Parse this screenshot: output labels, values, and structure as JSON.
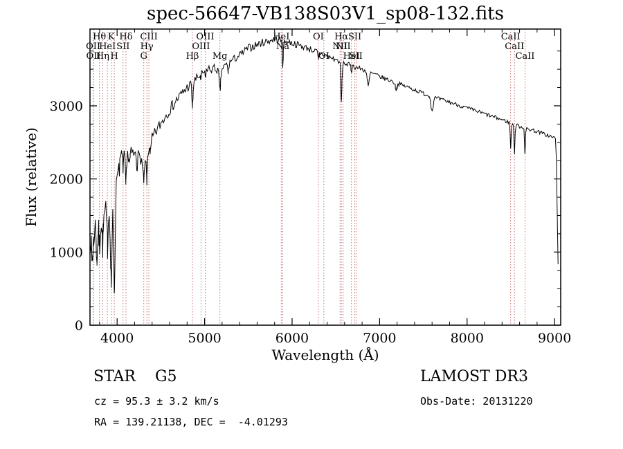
{
  "title": "spec-56647-VB138S03V1_sp08-132.fits",
  "footer": {
    "star_class": "STAR    G5",
    "survey": "LAMOST DR3",
    "cz": "cz = 95.3 ± 3.2 km/s",
    "obs_date": "Obs-Date: 20131220",
    "radec": "RA = 139.21138, DEC =  -4.01293"
  },
  "chart_data": {
    "type": "line",
    "title": "spec-56647-VB138S03V1_sp08-132.fits",
    "xlabel": "Wavelength (Å)",
    "ylabel": "Flux (relative)",
    "xlim": [
      3690,
      9070
    ],
    "ylim": [
      0,
      4050
    ],
    "x_ticks": [
      4000,
      5000,
      6000,
      7000,
      8000,
      9000
    ],
    "y_ticks": [
      0,
      1000,
      2000,
      3000
    ],
    "x_minor_step": 200,
    "y_minor_step": 250,
    "grid": false,
    "legend": "none",
    "line_color": "#000000",
    "marker_color": "#b84c4c",
    "sample_step": 10,
    "data_end": 9040,
    "noise_seed": 7,
    "continuum": [
      [
        3690,
        1300
      ],
      [
        3710,
        1250
      ],
      [
        3730,
        1320
      ],
      [
        3750,
        1340
      ],
      [
        3770,
        1300
      ],
      [
        3790,
        1380
      ],
      [
        3810,
        1420
      ],
      [
        3830,
        1450
      ],
      [
        3850,
        1480
      ],
      [
        3870,
        1500
      ],
      [
        3890,
        1520
      ],
      [
        3910,
        1530
      ],
      [
        3930,
        1520
      ],
      [
        3950,
        1500
      ],
      [
        3970,
        1520
      ],
      [
        3985,
        1700
      ],
      [
        4000,
        2100
      ],
      [
        4020,
        2250
      ],
      [
        4050,
        2320
      ],
      [
        4100,
        2320
      ],
      [
        4150,
        2350
      ],
      [
        4200,
        2330
      ],
      [
        4250,
        2300
      ],
      [
        4300,
        2270
      ],
      [
        4350,
        2380
      ],
      [
        4400,
        2550
      ],
      [
        4450,
        2660
      ],
      [
        4500,
        2760
      ],
      [
        4550,
        2860
      ],
      [
        4600,
        2950
      ],
      [
        4650,
        3030
      ],
      [
        4700,
        3110
      ],
      [
        4750,
        3180
      ],
      [
        4800,
        3250
      ],
      [
        4850,
        3300
      ],
      [
        4900,
        3360
      ],
      [
        4950,
        3420
      ],
      [
        5000,
        3470
      ],
      [
        5050,
        3500
      ],
      [
        5100,
        3510
      ],
      [
        5150,
        3500
      ],
      [
        5200,
        3510
      ],
      [
        5250,
        3560
      ],
      [
        5300,
        3610
      ],
      [
        5350,
        3650
      ],
      [
        5400,
        3690
      ],
      [
        5450,
        3740
      ],
      [
        5500,
        3790
      ],
      [
        5550,
        3810
      ],
      [
        5600,
        3840
      ],
      [
        5650,
        3860
      ],
      [
        5700,
        3880
      ],
      [
        5750,
        3895
      ],
      [
        5800,
        3910
      ],
      [
        5850,
        3905
      ],
      [
        5900,
        3890
      ],
      [
        5950,
        3875
      ],
      [
        6000,
        3860
      ],
      [
        6050,
        3840
      ],
      [
        6100,
        3820
      ],
      [
        6150,
        3800
      ],
      [
        6200,
        3780
      ],
      [
        6250,
        3755
      ],
      [
        6300,
        3730
      ],
      [
        6350,
        3705
      ],
      [
        6400,
        3680
      ],
      [
        6450,
        3655
      ],
      [
        6500,
        3630
      ],
      [
        6550,
        3605
      ],
      [
        6600,
        3580
      ],
      [
        6650,
        3560
      ],
      [
        6700,
        3540
      ],
      [
        6750,
        3520
      ],
      [
        6800,
        3500
      ],
      [
        6850,
        3475
      ],
      [
        6900,
        3450
      ],
      [
        6950,
        3425
      ],
      [
        7000,
        3400
      ],
      [
        7100,
        3355
      ],
      [
        7200,
        3310
      ],
      [
        7300,
        3265
      ],
      [
        7400,
        3220
      ],
      [
        7500,
        3170
      ],
      [
        7600,
        3120
      ],
      [
        7700,
        3085
      ],
      [
        7800,
        3050
      ],
      [
        7900,
        3010
      ],
      [
        8000,
        2970
      ],
      [
        8100,
        2930
      ],
      [
        8200,
        2890
      ],
      [
        8300,
        2850
      ],
      [
        8400,
        2810
      ],
      [
        8500,
        2765
      ],
      [
        8600,
        2720
      ],
      [
        8700,
        2685
      ],
      [
        8800,
        2650
      ],
      [
        8900,
        2605
      ],
      [
        9000,
        2560
      ],
      [
        9010,
        2540
      ],
      [
        9020,
        2300
      ],
      [
        9030,
        1600
      ],
      [
        9040,
        800
      ]
    ],
    "noise_profile": [
      [
        3690,
        200
      ],
      [
        3900,
        215
      ],
      [
        3990,
        180
      ],
      [
        4010,
        110
      ],
      [
        4200,
        95
      ],
      [
        4400,
        85
      ],
      [
        4700,
        78
      ],
      [
        5000,
        68
      ],
      [
        5300,
        55
      ],
      [
        5600,
        55
      ],
      [
        6000,
        48
      ],
      [
        6400,
        40
      ],
      [
        6800,
        34
      ],
      [
        7200,
        30
      ],
      [
        7600,
        30
      ],
      [
        8000,
        27
      ],
      [
        8500,
        27
      ],
      [
        9000,
        28
      ],
      [
        9040,
        40
      ]
    ],
    "absorption_features": [
      [
        3712,
        380,
        7
      ],
      [
        3727,
        220,
        6
      ],
      [
        3770,
        400,
        7
      ],
      [
        3798,
        320,
        6
      ],
      [
        3835,
        360,
        6
      ],
      [
        3889,
        420,
        6
      ],
      [
        3933,
        950,
        7
      ],
      [
        3968,
        1020,
        7
      ],
      [
        4026,
        130,
        5
      ],
      [
        4068,
        160,
        5
      ],
      [
        4101,
        420,
        7
      ],
      [
        4144,
        120,
        5
      ],
      [
        4226,
        150,
        5
      ],
      [
        4305,
        300,
        11
      ],
      [
        4340,
        380,
        6
      ],
      [
        4383,
        140,
        5
      ],
      [
        4861,
        330,
        6
      ],
      [
        4959,
        70,
        5
      ],
      [
        5007,
        80,
        5
      ],
      [
        5175,
        310,
        9
      ],
      [
        5270,
        120,
        6
      ],
      [
        5893,
        330,
        6
      ],
      [
        6300,
        110,
        5
      ],
      [
        6563,
        560,
        6
      ],
      [
        6678,
        80,
        5
      ],
      [
        6870,
        210,
        10
      ],
      [
        7190,
        90,
        10
      ],
      [
        7600,
        190,
        12
      ],
      [
        8498,
        340,
        5
      ],
      [
        8542,
        380,
        5
      ],
      [
        8662,
        350,
        5
      ]
    ],
    "line_markers": [
      {
        "wavelength": 3726,
        "label": "OII",
        "row": 2
      },
      {
        "wavelength": 3729,
        "label": "OII",
        "row": 3
      },
      {
        "wavelength": 3798,
        "label": "Hθ",
        "row": 1
      },
      {
        "wavelength": 3835,
        "label": "Hη",
        "row": 3
      },
      {
        "wavelength": 3889,
        "label": "HeI",
        "row": 2
      },
      {
        "wavelength": 3933,
        "label": "K",
        "row": 1
      },
      {
        "wavelength": 3968,
        "label": "H",
        "row": 3
      },
      {
        "wavelength": 4068,
        "label": "SII",
        "row": 2
      },
      {
        "wavelength": 4101,
        "label": "Hδ",
        "row": 1
      },
      {
        "wavelength": 4305,
        "label": "G",
        "row": 3
      },
      {
        "wavelength": 4340,
        "label": "Hγ",
        "row": 2
      },
      {
        "wavelength": 4363,
        "label": "CIII",
        "row": 1
      },
      {
        "wavelength": 4861,
        "label": "Hβ",
        "row": 3
      },
      {
        "wavelength": 4959,
        "label": "OIII",
        "row": 2
      },
      {
        "wavelength": 5007,
        "label": "OIII",
        "row": 1
      },
      {
        "wavelength": 5175,
        "label": "Mg",
        "row": 3
      },
      {
        "wavelength": 5876,
        "label": "HeI",
        "row": 1
      },
      {
        "wavelength": 5893,
        "label": "Na",
        "row": 2
      },
      {
        "wavelength": 6300,
        "label": "OI",
        "row": 1
      },
      {
        "wavelength": 6363,
        "label": "OI",
        "row": 3
      },
      {
        "wavelength": 6548,
        "label": "NII",
        "row": 2
      },
      {
        "wavelength": 6563,
        "label": "Hα",
        "row": 1
      },
      {
        "wavelength": 6584,
        "label": "NII",
        "row": 2
      },
      {
        "wavelength": 6678,
        "label": "HeI",
        "row": 3
      },
      {
        "wavelength": 6717,
        "label": "SII",
        "row": 1
      },
      {
        "wavelength": 6731,
        "label": "SII",
        "row": 3
      },
      {
        "wavelength": 8498,
        "label": "CaII",
        "row": 1
      },
      {
        "wavelength": 8542,
        "label": "CaII",
        "row": 2
      },
      {
        "wavelength": 8662,
        "label": "CaII",
        "row": 3
      }
    ]
  }
}
